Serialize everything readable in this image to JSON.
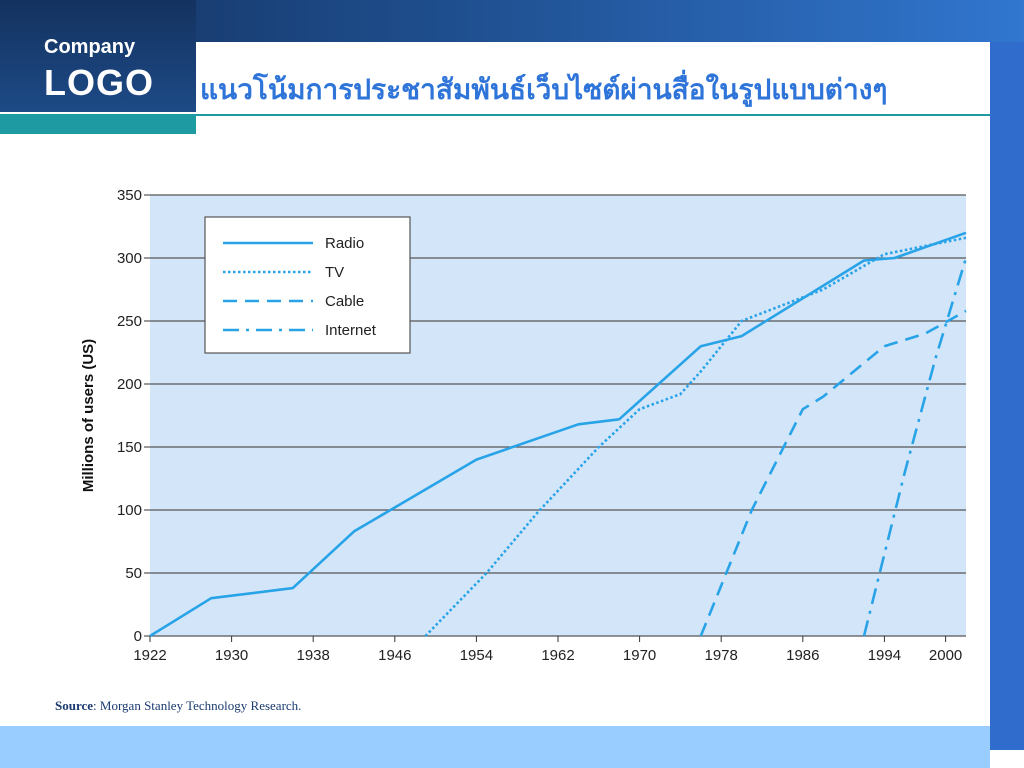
{
  "header": {
    "logo_top": "Company",
    "logo_main": "LOGO",
    "title": "แนวโน้มการประชาสัมพันธ์เว็บไซต์ผ่านสื่อในรูปแบบต่างๆ"
  },
  "source": {
    "label": "Source",
    "text": ": Morgan Stanley Technology Research."
  },
  "colors": {
    "accent": "#2e74d9",
    "series": "#29a3e8",
    "plot_bg": "#d3e6f9",
    "teal": "#1e9aa3"
  },
  "chart_data": {
    "type": "line",
    "ylabel": "Millions of users (US)",
    "xlabel": "",
    "xlim": [
      1922,
      2002
    ],
    "ylim": [
      0,
      350
    ],
    "x_ticks": [
      "1922",
      "1930",
      "1938",
      "1946",
      "1954",
      "1962",
      "1970",
      "1978",
      "1986",
      "1994",
      "2000"
    ],
    "y_ticks": [
      "0",
      "50",
      "100",
      "150",
      "200",
      "250",
      "300",
      "350"
    ],
    "grid": "horizontal",
    "legend_position": "top-left",
    "series": [
      {
        "name": "Radio",
        "dash": "solid",
        "x": [
          1922,
          1928,
          1936,
          1942,
          1954,
          1964,
          1968,
          1976,
          1980,
          1992,
          1995,
          2002
        ],
        "y": [
          0,
          30,
          38,
          83,
          140,
          168,
          172,
          230,
          238,
          298,
          300,
          320
        ]
      },
      {
        "name": "TV",
        "dash": "dotted",
        "x": [
          1949,
          1955,
          1960,
          1966,
          1970,
          1974,
          1976,
          1980,
          1988,
          1994,
          2002
        ],
        "y": [
          0,
          50,
          98,
          150,
          180,
          192,
          210,
          250,
          275,
          303,
          316
        ]
      },
      {
        "name": "Cable",
        "dash": "dashed",
        "x": [
          1976,
          1981,
          1986,
          1988,
          1991,
          1994,
          1998,
          2002
        ],
        "y": [
          0,
          100,
          180,
          190,
          210,
          230,
          240,
          258
        ]
      },
      {
        "name": "Internet",
        "dash": "dashdot",
        "x": [
          1992,
          1996,
          1999,
          2002
        ],
        "y": [
          0,
          130,
          220,
          300
        ]
      }
    ]
  }
}
